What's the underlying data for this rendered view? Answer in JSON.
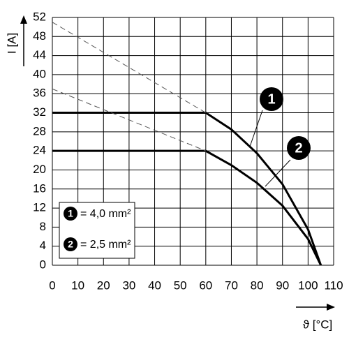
{
  "chart_data": {
    "type": "line",
    "y_label": "I [A]",
    "x_label": "ϑ [°C]",
    "xlim": [
      0,
      110
    ],
    "ylim": [
      0,
      52
    ],
    "xticks": [
      0,
      10,
      20,
      30,
      40,
      50,
      60,
      70,
      80,
      90,
      100,
      110
    ],
    "yticks": [
      0,
      4,
      8,
      12,
      16,
      20,
      24,
      28,
      32,
      36,
      40,
      44,
      48,
      52
    ],
    "grid": true,
    "series": [
      {
        "name": "= 4,0 mm²",
        "marker": "1",
        "color": "#000000",
        "dashed": false,
        "x": [
          0,
          60,
          70,
          80,
          90,
          100,
          105
        ],
        "values": [
          32,
          32,
          28.5,
          23.5,
          17,
          7.5,
          0
        ]
      },
      {
        "name": "= 2,5 mm²",
        "marker": "2",
        "color": "#000000",
        "dashed": false,
        "x": [
          0,
          60,
          70,
          80,
          90,
          100,
          105
        ],
        "values": [
          24,
          24,
          21,
          17.3,
          12.5,
          5.5,
          0
        ]
      },
      {
        "color": "#555555",
        "dashed": true,
        "x": [
          0,
          60
        ],
        "values": [
          51,
          32
        ]
      },
      {
        "color": "#555555",
        "dashed": true,
        "x": [
          0,
          60
        ],
        "values": [
          37,
          24
        ]
      }
    ]
  }
}
